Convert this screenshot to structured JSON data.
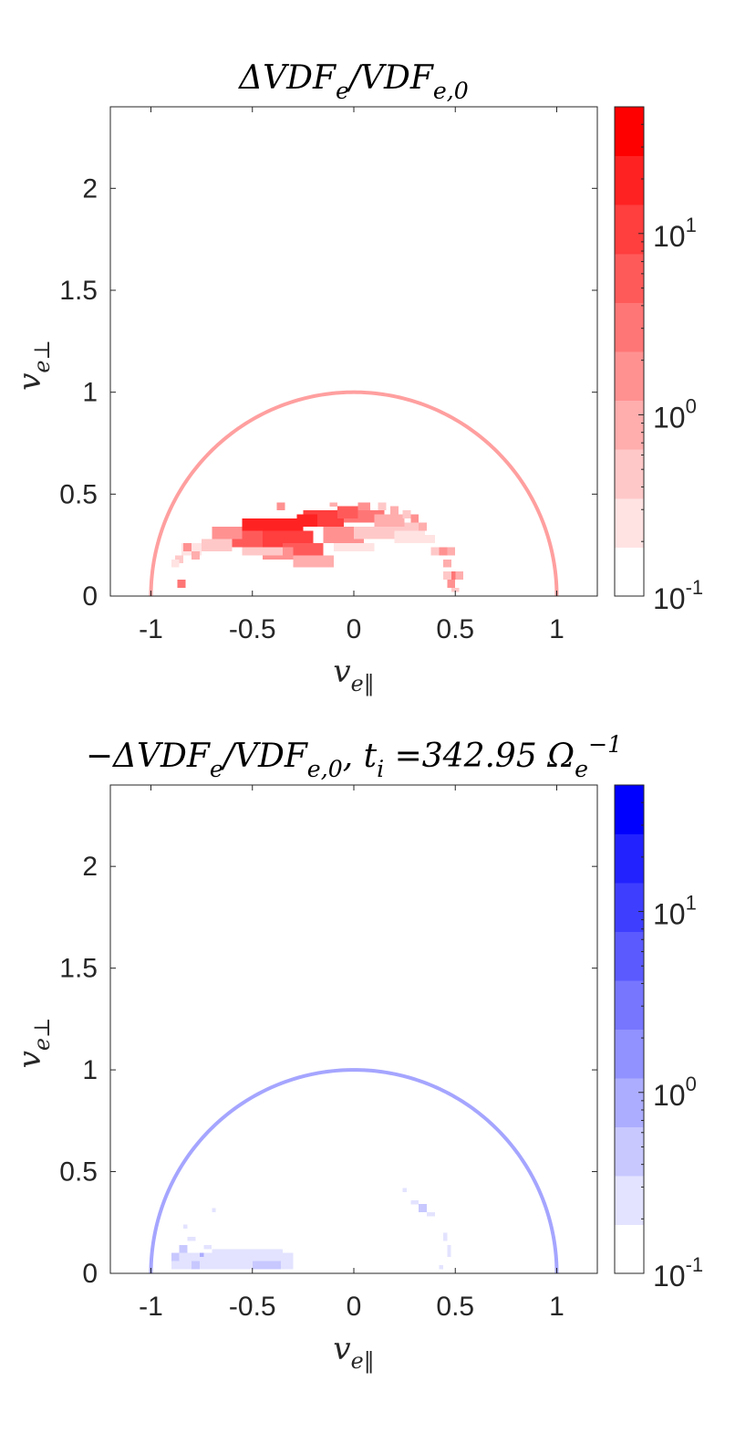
{
  "chart_data": [
    {
      "type": "heatmap",
      "title": "ΔVDF_e/VDF_e,0",
      "xlabel": "v_e‖",
      "ylabel": "v_e⊥",
      "xlim": [
        -1.2,
        1.2
      ],
      "ylim": [
        0,
        2.4
      ],
      "xticks": [
        -1,
        -0.5,
        0,
        0.5,
        1
      ],
      "xtick_labels": [
        "-1",
        "-0.5",
        "0",
        "0.5",
        "1"
      ],
      "yticks": [
        0,
        0.5,
        1,
        1.5,
        2
      ],
      "ytick_labels": [
        "0",
        "0.5",
        "1",
        "1.5",
        "2"
      ],
      "grid": false,
      "colorbar": {
        "scale": "log",
        "range": [
          0.1,
          50
        ],
        "ticks": [
          0.1,
          1,
          10
        ],
        "tick_labels": [
          {
            "base": "10",
            "exp": "-1"
          },
          {
            "base": "10",
            "exp": "0"
          },
          {
            "base": "10",
            "exp": "1"
          }
        ],
        "levels": 10,
        "colors": [
          "#ffffff",
          "#ffe3e3",
          "#ffc8c8",
          "#ffadad",
          "#ff9191",
          "#ff7676",
          "#ff5a5a",
          "#ff3e3e",
          "#ff2222",
          "#ff0000"
        ]
      },
      "reference_curve": {
        "shape": "semicircle",
        "radius": 1,
        "color": "#ff9f9f"
      },
      "cell_size": [
        0.02,
        0.02
      ],
      "cells": [
        {
          "x0": -0.55,
          "x1": -0.25,
          "y0": 0.3,
          "y1": 0.38,
          "level": 8
        },
        {
          "x0": -0.45,
          "x1": -0.2,
          "y0": 0.24,
          "y1": 0.32,
          "level": 7
        },
        {
          "x0": -0.25,
          "x1": -0.05,
          "y0": 0.34,
          "y1": 0.42,
          "level": 7
        },
        {
          "x0": -0.6,
          "x1": -0.45,
          "y0": 0.24,
          "y1": 0.32,
          "level": 6
        },
        {
          "x0": -0.35,
          "x1": -0.15,
          "y0": 0.18,
          "y1": 0.26,
          "level": 6
        },
        {
          "x0": -0.05,
          "x1": 0.15,
          "y0": 0.36,
          "y1": 0.42,
          "level": 5
        },
        {
          "x0": -0.7,
          "x1": -0.55,
          "y0": 0.28,
          "y1": 0.34,
          "level": 4
        },
        {
          "x0": -0.45,
          "x1": -0.3,
          "y0": 0.18,
          "y1": 0.24,
          "level": 4
        },
        {
          "x0": -0.15,
          "x1": 0.05,
          "y0": 0.26,
          "y1": 0.34,
          "level": 4
        },
        {
          "x0": 0.1,
          "x1": 0.25,
          "y0": 0.34,
          "y1": 0.4,
          "level": 3
        },
        {
          "x0": -0.3,
          "x1": -0.1,
          "y0": 0.14,
          "y1": 0.2,
          "level": 3
        },
        {
          "x0": -0.75,
          "x1": -0.6,
          "y0": 0.22,
          "y1": 0.28,
          "level": 2
        },
        {
          "x0": -0.55,
          "x1": -0.35,
          "y0": 0.2,
          "y1": 0.24,
          "level": 2
        },
        {
          "x0": 0.0,
          "x1": 0.25,
          "y0": 0.28,
          "y1": 0.34,
          "level": 2
        },
        {
          "x0": 0.25,
          "x1": 0.35,
          "y0": 0.3,
          "y1": 0.36,
          "level": 2
        },
        {
          "x0": -0.1,
          "x1": 0.1,
          "y0": 0.22,
          "y1": 0.26,
          "level": 1
        },
        {
          "x0": 0.2,
          "x1": 0.35,
          "y0": 0.26,
          "y1": 0.32,
          "level": 1
        },
        {
          "x0": -0.85,
          "x1": -0.75,
          "y0": 0.2,
          "y1": 0.26,
          "level": 1
        },
        {
          "x0": 0.35,
          "x1": 0.4,
          "y0": 0.26,
          "y1": 0.3,
          "level": 1
        },
        {
          "x0": -0.28,
          "x1": -0.18,
          "y0": 0.34,
          "y1": 0.4,
          "level": 8
        },
        {
          "x0": -0.08,
          "x1": 0.02,
          "y0": 0.38,
          "y1": 0.44,
          "level": 6
        },
        {
          "x0": 0.02,
          "x1": 0.08,
          "y0": 0.42,
          "y1": 0.46,
          "level": 4
        },
        {
          "x0": 0.12,
          "x1": 0.16,
          "y0": 0.42,
          "y1": 0.46,
          "level": 2
        },
        {
          "x0": 0.18,
          "x1": 0.22,
          "y0": 0.4,
          "y1": 0.44,
          "level": 3
        },
        {
          "x0": 0.24,
          "x1": 0.28,
          "y0": 0.38,
          "y1": 0.42,
          "level": 2
        },
        {
          "x0": 0.28,
          "x1": 0.32,
          "y0": 0.36,
          "y1": 0.4,
          "level": 4
        },
        {
          "x0": 0.32,
          "x1": 0.36,
          "y0": 0.32,
          "y1": 0.36,
          "level": 3
        },
        {
          "x0": -0.38,
          "x1": -0.34,
          "y0": 0.42,
          "y1": 0.46,
          "level": 4
        },
        {
          "x0": -0.12,
          "x1": -0.08,
          "y0": 0.44,
          "y1": 0.46,
          "level": 3
        },
        {
          "x0": -0.88,
          "x1": -0.84,
          "y0": 0.16,
          "y1": 0.2,
          "level": 2
        },
        {
          "x0": -0.84,
          "x1": -0.8,
          "y0": 0.22,
          "y1": 0.26,
          "level": 4
        },
        {
          "x0": -0.8,
          "x1": -0.76,
          "y0": 0.18,
          "y1": 0.22,
          "level": 3
        },
        {
          "x0": -0.9,
          "x1": -0.86,
          "y0": 0.14,
          "y1": 0.18,
          "level": 1
        },
        {
          "x0": -0.87,
          "x1": -0.83,
          "y0": 0.04,
          "y1": 0.08,
          "level": 5
        },
        {
          "x0": 0.38,
          "x1": 0.42,
          "y0": 0.2,
          "y1": 0.24,
          "level": 2
        },
        {
          "x0": 0.42,
          "x1": 0.46,
          "y0": 0.2,
          "y1": 0.24,
          "level": 4
        },
        {
          "x0": 0.46,
          "x1": 0.5,
          "y0": 0.2,
          "y1": 0.24,
          "level": 3
        },
        {
          "x0": 0.44,
          "x1": 0.48,
          "y0": 0.14,
          "y1": 0.18,
          "level": 3
        },
        {
          "x0": 0.48,
          "x1": 0.52,
          "y0": 0.08,
          "y1": 0.12,
          "level": 5
        },
        {
          "x0": 0.46,
          "x1": 0.5,
          "y0": 0.04,
          "y1": 0.08,
          "level": 4
        },
        {
          "x0": 0.5,
          "x1": 0.54,
          "y0": 0.08,
          "y1": 0.12,
          "level": 3
        },
        {
          "x0": 0.44,
          "x1": 0.48,
          "y0": 0.08,
          "y1": 0.12,
          "level": 2
        },
        {
          "x0": 0.48,
          "x1": 0.52,
          "y0": 0.02,
          "y1": 0.04,
          "level": 2
        }
      ]
    },
    {
      "type": "heatmap",
      "title": "−ΔVDF_e/VDF_e,0, t_i =342.95 Ω_e^−1",
      "xlabel": "v_e‖",
      "ylabel": "v_e⊥",
      "xlim": [
        -1.2,
        1.2
      ],
      "ylim": [
        0,
        2.4
      ],
      "xticks": [
        -1,
        -0.5,
        0,
        0.5,
        1
      ],
      "xtick_labels": [
        "-1",
        "-0.5",
        "0",
        "0.5",
        "1"
      ],
      "yticks": [
        0,
        0.5,
        1,
        1.5,
        2
      ],
      "ytick_labels": [
        "0",
        "0.5",
        "1",
        "1.5",
        "2"
      ],
      "grid": false,
      "colorbar": {
        "scale": "log",
        "range": [
          0.1,
          50
        ],
        "ticks": [
          0.1,
          1,
          10
        ],
        "tick_labels": [
          {
            "base": "10",
            "exp": "-1"
          },
          {
            "base": "10",
            "exp": "0"
          },
          {
            "base": "10",
            "exp": "1"
          }
        ],
        "levels": 10,
        "colors": [
          "#ffffff",
          "#e3e3ff",
          "#c8c8ff",
          "#adadff",
          "#9191ff",
          "#7676ff",
          "#5a5aff",
          "#3e3eff",
          "#2222ff",
          "#0000ff"
        ]
      },
      "reference_curve": {
        "shape": "semicircle",
        "radius": 1,
        "color": "#a5a5ff"
      },
      "cell_size": [
        0.02,
        0.02
      ],
      "cells": [
        {
          "x0": -0.9,
          "x1": -0.3,
          "y0": 0.02,
          "y1": 0.1,
          "level": 1
        },
        {
          "x0": -0.7,
          "x1": -0.35,
          "y0": 0.1,
          "y1": 0.12,
          "level": 1
        },
        {
          "x0": -0.5,
          "x1": -0.36,
          "y0": 0.02,
          "y1": 0.06,
          "level": 2
        },
        {
          "x0": -0.64,
          "x1": -0.58,
          "y0": 0.02,
          "y1": 0.06,
          "level": 1
        },
        {
          "x0": -0.86,
          "x1": -0.82,
          "y0": 0.1,
          "y1": 0.14,
          "level": 2
        },
        {
          "x0": -0.82,
          "x1": -0.78,
          "y0": 0.16,
          "y1": 0.18,
          "level": 1
        },
        {
          "x0": -0.9,
          "x1": -0.86,
          "y0": 0.06,
          "y1": 0.1,
          "level": 2
        },
        {
          "x0": -0.8,
          "x1": -0.76,
          "y0": 0.02,
          "y1": 0.06,
          "level": 2
        },
        {
          "x0": -0.74,
          "x1": -0.7,
          "y0": 0.12,
          "y1": 0.14,
          "level": 1
        },
        {
          "x0": -0.7,
          "x1": -0.68,
          "y0": 0.3,
          "y1": 0.32,
          "level": 1
        },
        {
          "x0": -0.84,
          "x1": -0.82,
          "y0": 0.22,
          "y1": 0.24,
          "level": 1
        },
        {
          "x0": -0.76,
          "x1": -0.74,
          "y0": 0.08,
          "y1": 0.1,
          "level": 3
        },
        {
          "x0": 0.24,
          "x1": 0.26,
          "y0": 0.4,
          "y1": 0.42,
          "level": 1
        },
        {
          "x0": 0.28,
          "x1": 0.32,
          "y0": 0.34,
          "y1": 0.36,
          "level": 1
        },
        {
          "x0": 0.32,
          "x1": 0.36,
          "y0": 0.3,
          "y1": 0.34,
          "level": 2
        },
        {
          "x0": 0.36,
          "x1": 0.4,
          "y0": 0.28,
          "y1": 0.3,
          "level": 1
        },
        {
          "x0": 0.44,
          "x1": 0.46,
          "y0": 0.16,
          "y1": 0.2,
          "level": 1
        },
        {
          "x0": 0.46,
          "x1": 0.48,
          "y0": 0.08,
          "y1": 0.14,
          "level": 1
        },
        {
          "x0": 0.42,
          "x1": 0.44,
          "y0": 0.02,
          "y1": 0.04,
          "level": 1
        }
      ]
    }
  ]
}
